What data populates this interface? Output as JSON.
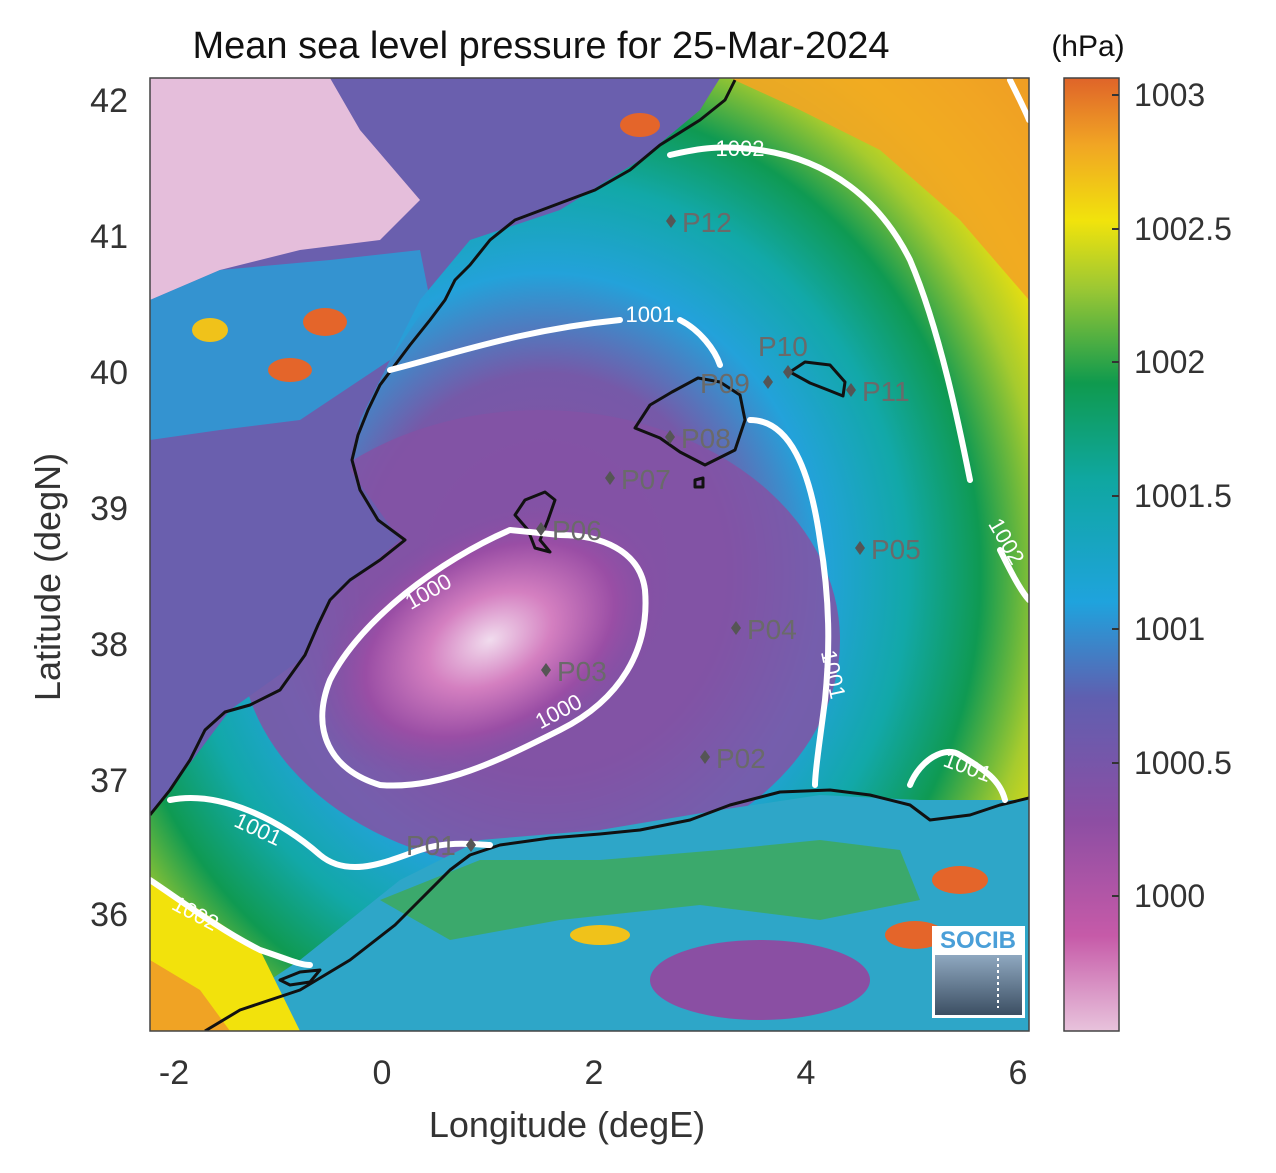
{
  "map": {
    "title": "Mean sea level pressure for 25-Mar-2024",
    "xlabel": "Longitude (degE)",
    "ylabel": "Latitude (degN)",
    "x_ticks": [
      "-2",
      "0",
      "2",
      "4",
      "6"
    ],
    "y_ticks": [
      "36",
      "37",
      "38",
      "39",
      "40",
      "41",
      "42"
    ],
    "colorbar": {
      "unit": "(hPa)",
      "ticks": [
        "1000",
        "1000.5",
        "1001",
        "1001.5",
        "1002",
        "1002.5",
        "1003"
      ]
    },
    "contour_labels": [
      "1000",
      "1000",
      "1001",
      "1001",
      "1001",
      "1001",
      "1002",
      "1002",
      "1002"
    ],
    "points": [
      "P01",
      "P02",
      "P03",
      "P04",
      "P05",
      "P06",
      "P07",
      "P08",
      "P09",
      "P10",
      "P11",
      "P12"
    ],
    "logo": "SOCIB",
    "colors": {
      "low": "#e6bcd8",
      "mid_low": "#8a4fa3",
      "mid": "#1aa6da",
      "mid_high": "#11a05a",
      "high_yellow": "#f3e10a",
      "high": "#e0662a"
    }
  }
}
